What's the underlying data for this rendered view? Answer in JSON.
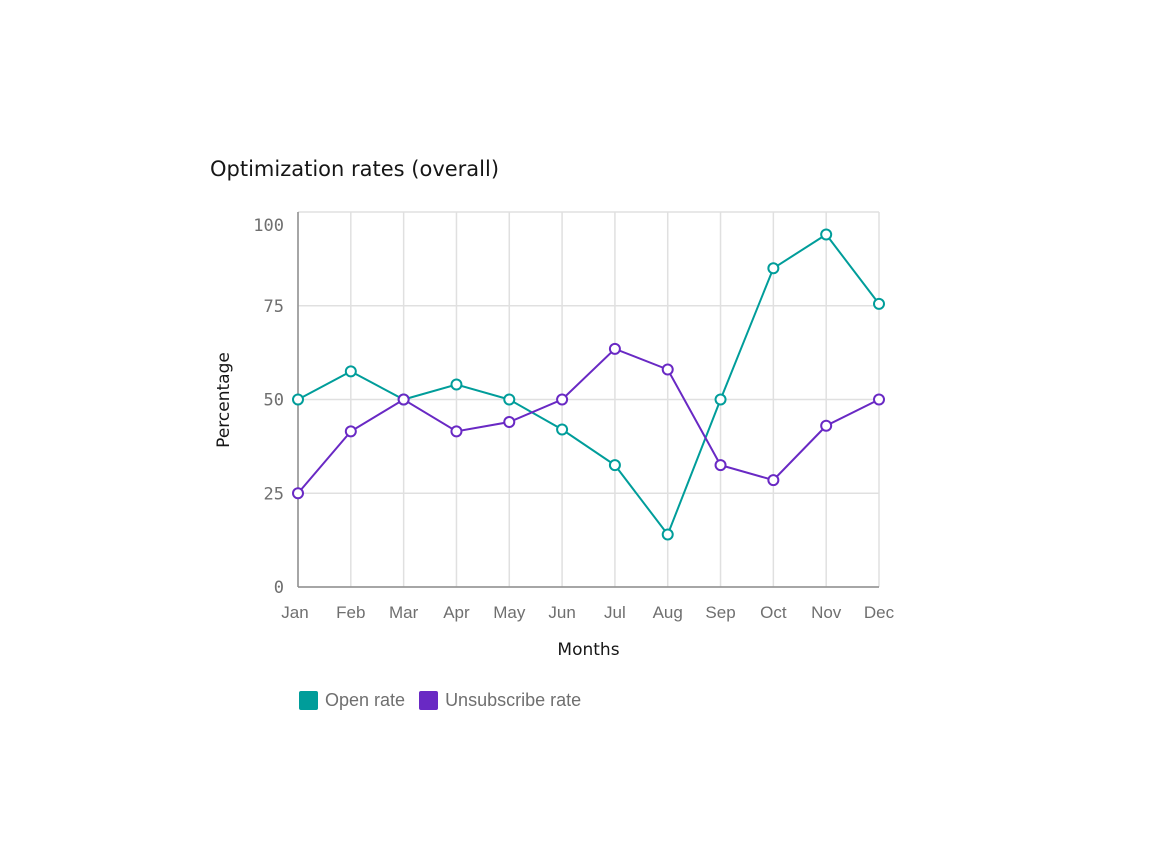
{
  "chart_data": {
    "type": "line",
    "title": "Optimization rates (overall)",
    "xlabel": "Months",
    "ylabel": "Percentage",
    "categories": [
      "Jan",
      "Feb",
      "Mar",
      "Apr",
      "May",
      "Jun",
      "Jul",
      "Aug",
      "Sep",
      "Oct",
      "Nov",
      "Dec"
    ],
    "ylim": [
      0,
      100
    ],
    "yticks": [
      0,
      25,
      50,
      75,
      100
    ],
    "grid": true,
    "legend_position": "bottom-left",
    "series": [
      {
        "name": "Open rate",
        "color": "#009d9a",
        "values": [
          50,
          57.5,
          50,
          54,
          50,
          42,
          32.5,
          14,
          50,
          85,
          94,
          75.5
        ]
      },
      {
        "name": "Unsubscribe rate",
        "color": "#6929c4",
        "values": [
          25,
          41.5,
          50,
          41.5,
          44,
          50,
          63.5,
          58,
          32.5,
          28.5,
          43,
          50
        ]
      }
    ]
  }
}
